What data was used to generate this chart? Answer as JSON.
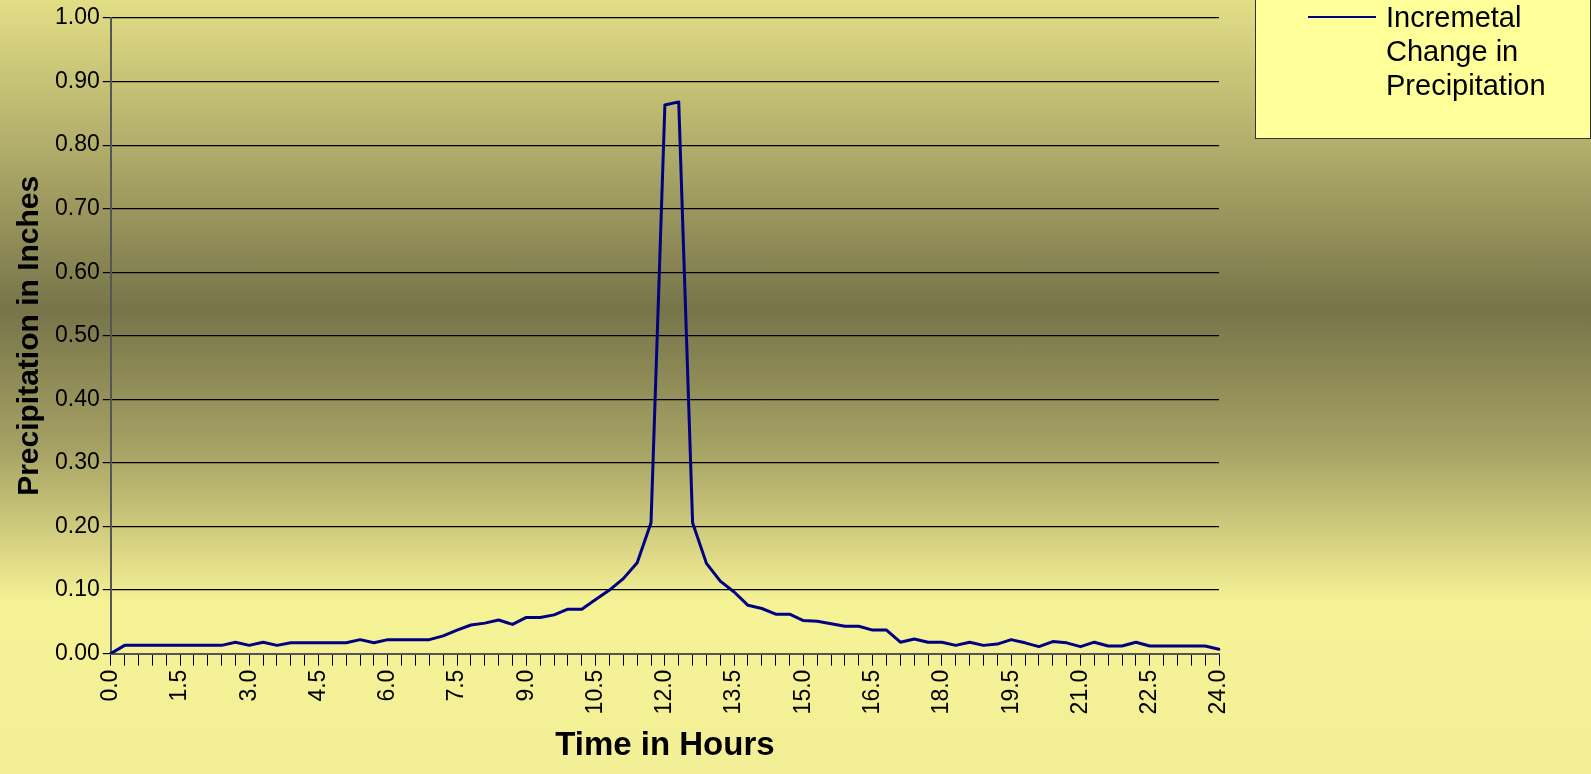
{
  "chart_data": {
    "type": "line",
    "xlabel": "Time in Hours",
    "ylabel": "Precipitation in Inches",
    "categories": [
      "0.0",
      null,
      null,
      null,
      null,
      "1.5",
      null,
      null,
      null,
      null,
      "3.0",
      null,
      null,
      null,
      null,
      "4.5",
      null,
      null,
      null,
      null,
      "6.0",
      null,
      null,
      null,
      null,
      "7.5",
      null,
      null,
      null,
      null,
      "9.0",
      null,
      null,
      null,
      null,
      "10.5",
      null,
      null,
      null,
      null,
      "12.0",
      null,
      null,
      null,
      null,
      "13.5",
      null,
      null,
      null,
      null,
      "15.0",
      null,
      null,
      null,
      null,
      "16.5",
      null,
      null,
      null,
      null,
      "18.0",
      null,
      null,
      null,
      null,
      "19.5",
      null,
      null,
      null,
      null,
      "21.0",
      null,
      null,
      null,
      null,
      "22.5",
      null,
      null,
      null,
      null,
      "24.0"
    ],
    "series": [
      {
        "name": "Incremetal Change in Precipitation",
        "color": "#000080",
        "values": [
          0,
          0.013,
          0.013,
          0.013,
          0.013,
          0.013,
          0.013,
          0.013,
          0.013,
          0.018,
          0.013,
          0.018,
          0.013,
          0.017,
          0.017,
          0.017,
          0.017,
          0.017,
          0.022,
          0.017,
          0.022,
          0.022,
          0.022,
          0.022,
          0.028,
          0.037,
          0.045,
          0.048,
          0.053,
          0.046,
          0.057,
          0.057,
          0.061,
          0.07,
          0.07,
          0.085,
          0.1,
          0.118,
          0.143,
          0.206,
          0.863,
          0.868,
          0.206,
          0.142,
          0.114,
          0.097,
          0.076,
          0.071,
          0.062,
          0.062,
          0.052,
          0.051,
          0.047,
          0.043,
          0.043,
          0.037,
          0.037,
          0.018,
          0.023,
          0.018,
          0.018,
          0.013,
          0.018,
          0.013,
          0.015,
          0.022,
          0.017,
          0.011,
          0.019,
          0.017,
          0.011,
          0.018,
          0.012,
          0.012,
          0.018,
          0.012,
          0.012,
          0.012,
          0.012,
          0.012,
          0.007
        ]
      }
    ],
    "ylim": [
      0,
      1
    ],
    "yticks": [
      {
        "value": 0,
        "label": "0.00"
      },
      {
        "value": 0.1,
        "label": "0.10"
      },
      {
        "value": 0.2,
        "label": "0.20"
      },
      {
        "value": 0.3,
        "label": "0.30"
      },
      {
        "value": 0.4,
        "label": "0.40"
      },
      {
        "value": 0.5,
        "label": "0.50"
      },
      {
        "value": 0.6,
        "label": "0.60"
      },
      {
        "value": 0.7,
        "label": "0.70"
      },
      {
        "value": 0.8,
        "label": "0.80"
      },
      {
        "value": 0.9,
        "label": "0.90"
      },
      {
        "value": 1,
        "label": "1.00"
      }
    ],
    "grid": "y",
    "legend": "top right",
    "marker": "none",
    "line_style": "solid"
  }
}
